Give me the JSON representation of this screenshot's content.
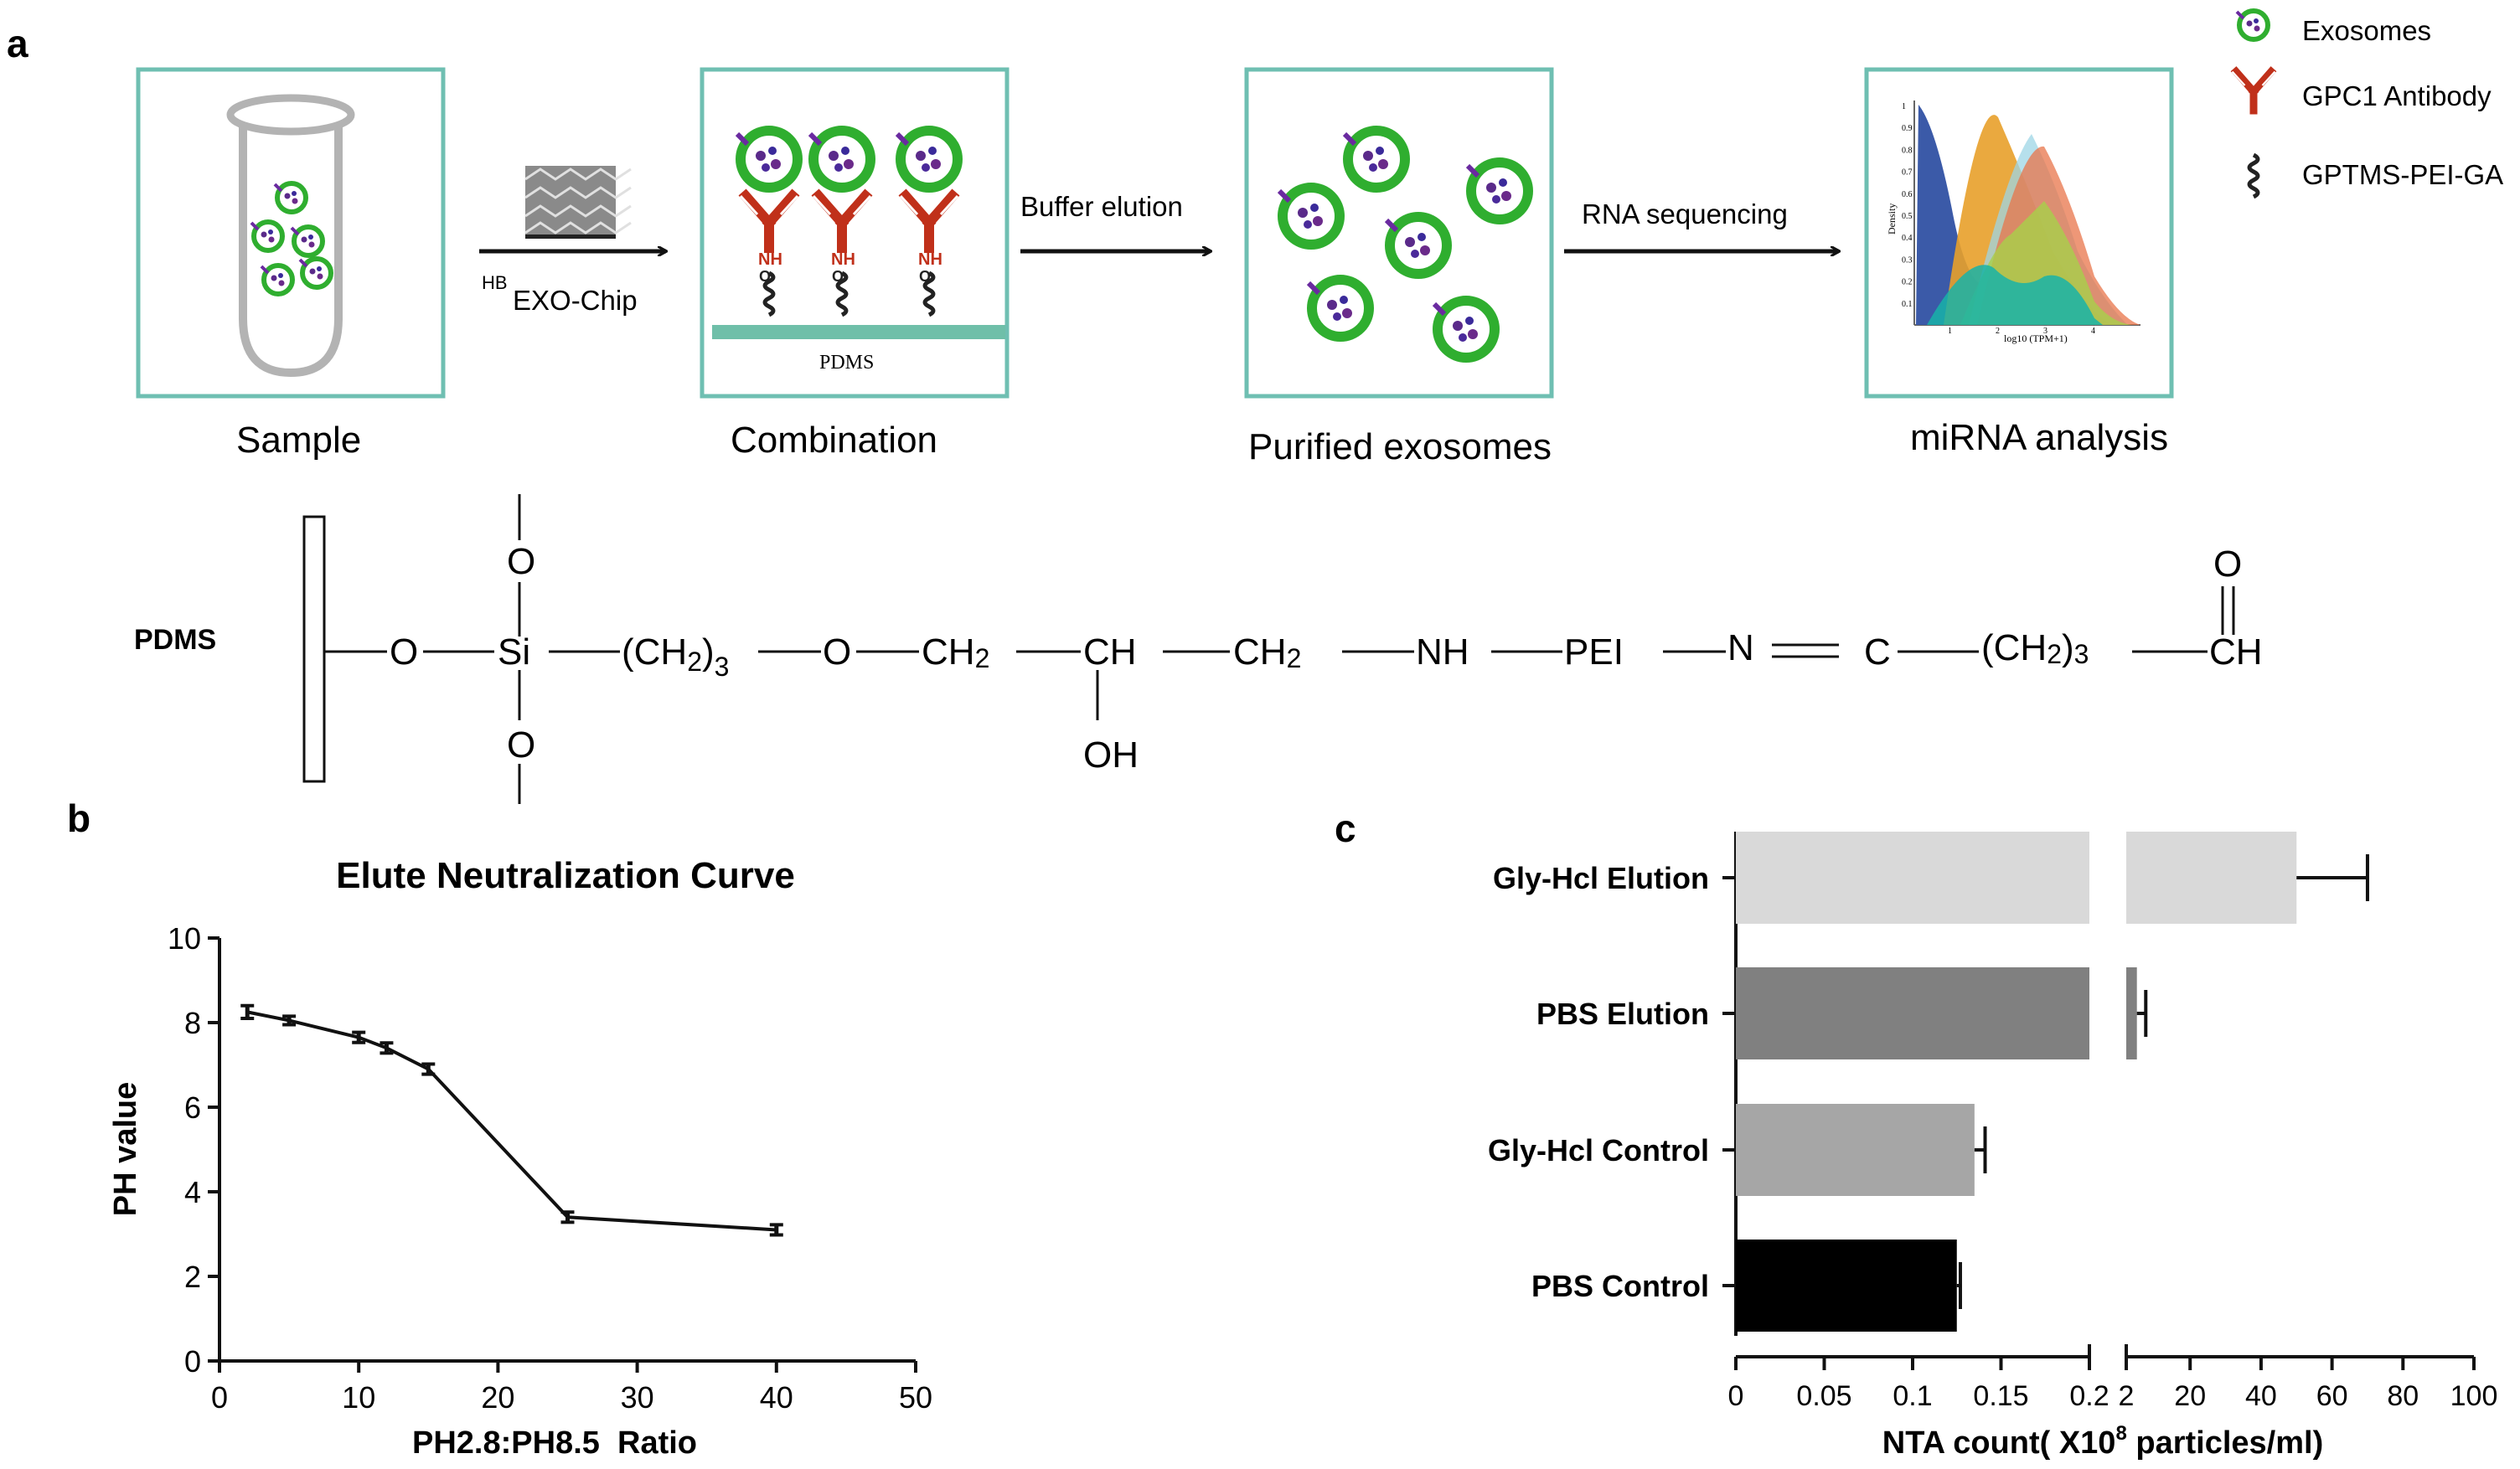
{
  "panels": {
    "a": "a",
    "b": "b",
    "c": "c"
  },
  "workflow": {
    "step_labels": [
      "Sample",
      "Combination",
      "Purified exosomes",
      "miRNA analysis"
    ],
    "arrows": [
      "EXO-Chip",
      "Buffer elution",
      "RNA sequencing"
    ],
    "chip_superscript": "HB",
    "substrate_label": "PDMS",
    "nh_label": "NH",
    "o_label": "O"
  },
  "legend": {
    "items": [
      {
        "label": "Exosomes",
        "icon": "exosome-icon",
        "color": "#33b033"
      },
      {
        "label": "GPC1 Antibody",
        "icon": "antibody-icon",
        "color": "#c0301a"
      },
      {
        "label": "GPTMS-PEI-GA",
        "icon": "linker-icon",
        "color": "#222222"
      }
    ]
  },
  "density_plot": {
    "ylabel": "Density",
    "xlabel": "log10 (TPM+1)",
    "yticks": [
      "1",
      "0.9",
      "0.8",
      "0.7",
      "0.6",
      "0.5",
      "0.4",
      "0.3",
      "0.2",
      "0.1"
    ],
    "xticks": [
      "1",
      "2",
      "3",
      "4"
    ]
  },
  "chemistry": {
    "label": "PDMS",
    "chain": [
      "O",
      "Si",
      "(CH",
      "2",
      ")",
      "3",
      "O",
      "CH",
      "2",
      "CH",
      "CH",
      "2",
      "NH",
      "PEI",
      "N",
      "C",
      "(CH",
      "2",
      ")",
      "3",
      "CH"
    ],
    "upper_o": "O",
    "lower_o": "O",
    "oh": "OH",
    "aldehyde_o": "O"
  },
  "chart_data": [
    {
      "type": "line",
      "title": "Elute Neutralization Curve",
      "xlabel": "PH2.8:PH8.5  Ratio",
      "ylabel": "PH value",
      "xlim": [
        0,
        50
      ],
      "ylim": [
        0,
        10
      ],
      "xticks": [
        "0",
        "10",
        "20",
        "30",
        "40",
        "50"
      ],
      "yticks": [
        "0",
        "2",
        "4",
        "6",
        "8",
        "10"
      ],
      "x": [
        2,
        5,
        10,
        12,
        15,
        25,
        40
      ],
      "y": [
        8.25,
        8.05,
        7.65,
        7.4,
        6.9,
        3.4,
        3.1
      ],
      "error": [
        0.15,
        0.1,
        0.12,
        0.12,
        0.12,
        0.12,
        0.12
      ]
    },
    {
      "type": "bar",
      "orientation": "horizontal",
      "xlabel": "NTA count( X10",
      "xlabel_superscript": "8",
      "xlabel_suffix": " particles/ml)",
      "categories": [
        "Gly-Hcl Elution",
        "PBS Elution",
        "Gly-Hcl Control",
        "PBS Control"
      ],
      "values": [
        50,
        5,
        0.135,
        0.125
      ],
      "error": [
        20,
        2.5,
        0.006,
        0.002
      ],
      "colors": [
        "#d9d9d9",
        "#808080",
        "#a6a6a6",
        "#000000"
      ],
      "axis_break": {
        "segment1": [
          0,
          0.2
        ],
        "segment2": [
          2,
          100
        ]
      },
      "xticks_segment1": [
        "0",
        "0.05",
        "0.1",
        "0.15",
        "0.2"
      ],
      "xticks_segment2": [
        "2",
        "20",
        "40",
        "60",
        "80",
        "100"
      ]
    }
  ]
}
